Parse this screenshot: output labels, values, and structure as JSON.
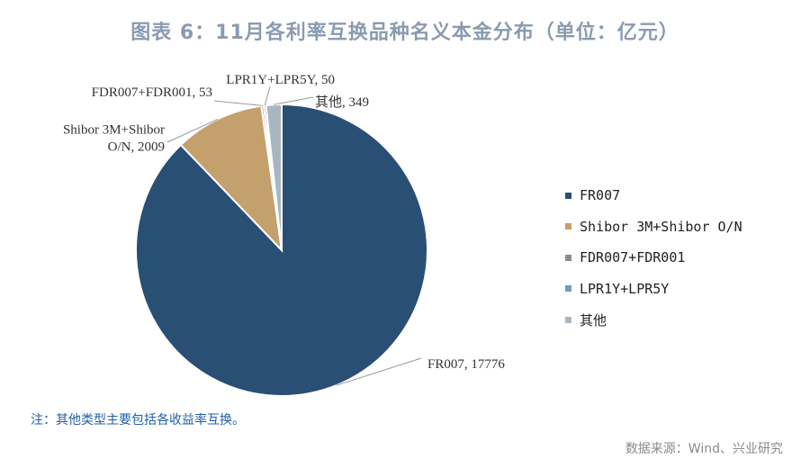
{
  "title": "图表 6：11月各利率互换品种名义本金分布（单位：亿元）",
  "note": "注：其他类型主要包括各收益率互换。",
  "source": "数据来源：Wind、兴业研究",
  "chart_data": {
    "type": "pie",
    "slices": [
      {
        "name": "FR007",
        "value": 17776,
        "color": "#2a4f75",
        "label_lines": [
          "FR007, 17776"
        ]
      },
      {
        "name": "Shibor 3M+Shibor O/N",
        "value": 2009,
        "color": "#c4a06c",
        "label_lines": [
          "Shibor 3M+Shibor",
          "O/N, 2009"
        ]
      },
      {
        "name": "FDR007+FDR001",
        "value": 53,
        "color": "#8c8c8c",
        "label_lines": [
          "FDR007+FDR001, 53"
        ]
      },
      {
        "name": "LPR1Y+LPR5Y",
        "value": 50,
        "color": "#6e9bbf",
        "label_lines": [
          "LPR1Y+LPR5Y, 50"
        ]
      },
      {
        "name": "其他",
        "value": 349,
        "color": "#a9b6c1",
        "label_lines": [
          "其他, 349"
        ]
      }
    ],
    "legend_position": "right"
  }
}
